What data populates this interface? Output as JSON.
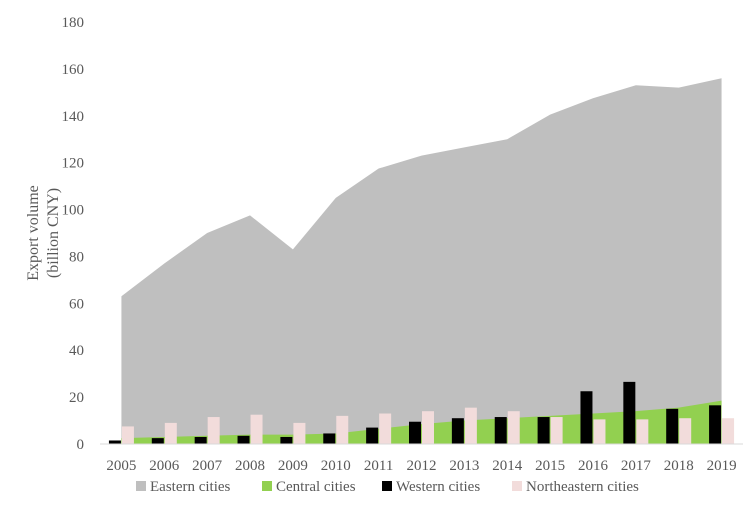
{
  "chart_data": {
    "type": "area",
    "ylabel": "Export volume (billion CNY)",
    "ylabel_lines": [
      "Export volume",
      "(billion CNY)"
    ],
    "ylim": [
      0,
      180
    ],
    "yticks": [
      0,
      20,
      40,
      60,
      80,
      100,
      120,
      140,
      160,
      180
    ],
    "grid": false,
    "legend_position": "bottom",
    "categories": [
      "2005",
      "2006",
      "2007",
      "2008",
      "2009",
      "2010",
      "2011",
      "2012",
      "2013",
      "2014",
      "2015",
      "2016",
      "2017",
      "2018",
      "2019"
    ],
    "series": [
      {
        "name": "Eastern cities",
        "type": "area",
        "color": "#bfbfbf",
        "values": [
          63,
          77,
          90,
          97.5,
          83,
          105,
          117.5,
          123,
          126.5,
          130,
          140.5,
          147.5,
          153,
          152,
          156
        ]
      },
      {
        "name": "Central cities",
        "type": "area",
        "color": "#92d050",
        "values": [
          2.5,
          3,
          3.5,
          4,
          4,
          4.5,
          6.5,
          8.5,
          10,
          11,
          12,
          13,
          14,
          15.5,
          18.5
        ]
      },
      {
        "name": "Western cities",
        "type": "bar",
        "color": "#000000",
        "values": [
          1.5,
          2.5,
          3,
          3.5,
          3,
          4.5,
          7,
          9.5,
          11,
          11.5,
          11.5,
          22.5,
          26.5,
          15,
          16.5
        ]
      },
      {
        "name": "Northeastern cities",
        "type": "bar",
        "color": "#f2dcdb",
        "values": [
          7.5,
          9,
          11.5,
          12.5,
          9,
          12,
          13,
          14,
          15.5,
          14,
          11.5,
          10.5,
          10.5,
          11,
          11
        ]
      }
    ]
  }
}
